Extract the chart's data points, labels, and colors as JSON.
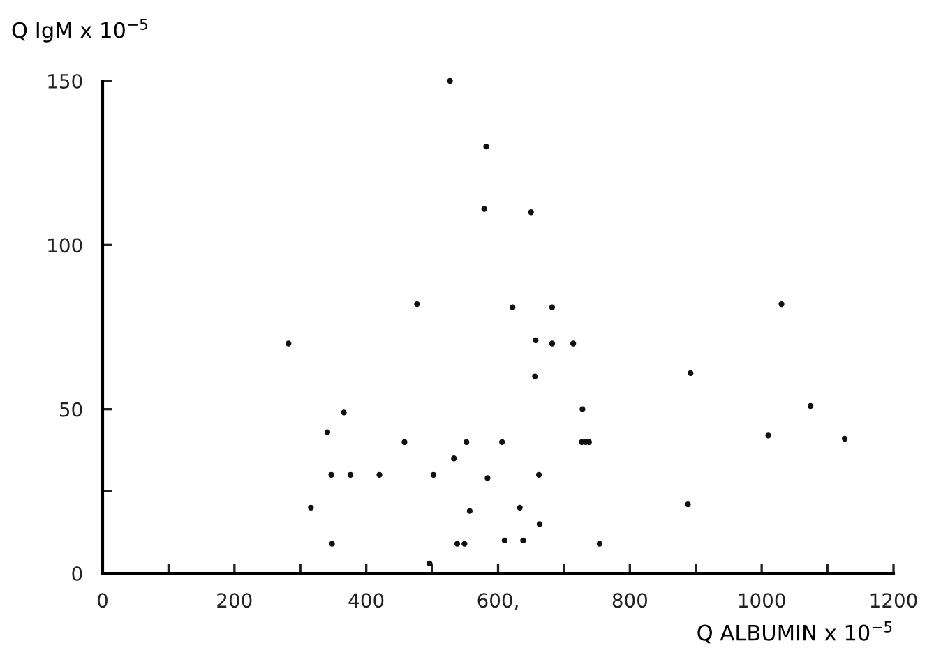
{
  "chart_data": {
    "type": "scatter",
    "xlabel": "Q ALBUMIN x 10$^{−5}$",
    "ylabel": "Q IgM x 10$^{−5}$",
    "x": [
      527,
      477,
      582,
      579,
      650,
      622,
      682,
      1030,
      282,
      366,
      341,
      347,
      376,
      420,
      458,
      502,
      533,
      552,
      316,
      348,
      538,
      549,
      496,
      557,
      584,
      606,
      633,
      610,
      638,
      663,
      662,
      656,
      657,
      682,
      714,
      728,
      727,
      733,
      738,
      754,
      892,
      888,
      1010,
      1074,
      1126
    ],
    "values": [
      150,
      82,
      130,
      111,
      110,
      81,
      81,
      82,
      70,
      49,
      43,
      30,
      30,
      30,
      40,
      30,
      35,
      40,
      20,
      9,
      9,
      9,
      3,
      19,
      29,
      40,
      20,
      10,
      10,
      15,
      30,
      60,
      71,
      70,
      70,
      50,
      40,
      40,
      40,
      9,
      61,
      21,
      42,
      51,
      41
    ],
    "color": "#111111",
    "marker": "circle",
    "grid": false,
    "xlim": [
      0,
      1200
    ],
    "ylim": [
      0,
      150
    ],
    "xticks": [
      0,
      {
        "value": 100,
        "label": null
      },
      200,
      {
        "value": 300,
        "label": null
      },
      400,
      {
        "value": 500,
        "label": null
      },
      {
        "value": 600,
        "label": "600,"
      },
      {
        "value": 700,
        "label": null
      },
      800,
      {
        "value": 900,
        "label": null
      },
      1000,
      {
        "value": 1100,
        "label": null
      },
      1200
    ],
    "yticks": [
      0,
      {
        "value": 25,
        "label": null
      },
      50,
      100,
      150
    ]
  }
}
